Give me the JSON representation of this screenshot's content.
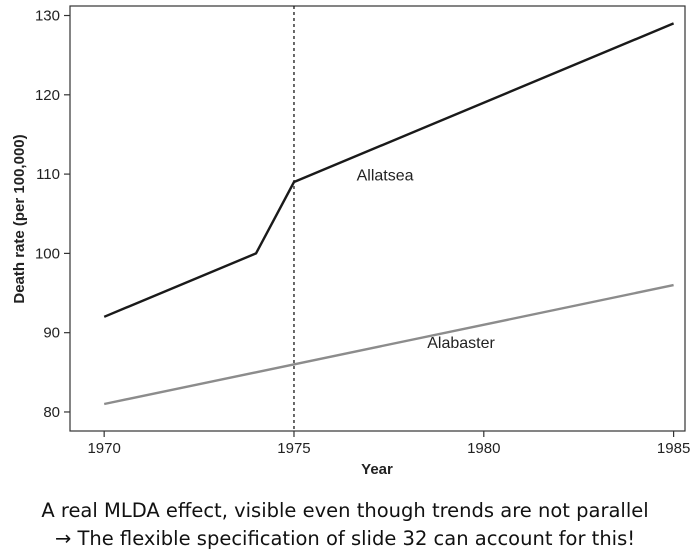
{
  "chart_data": {
    "type": "line",
    "xlabel": "Year",
    "ylabel": "Death rate (per 100,000)",
    "xlim": [
      1969.1,
      1985.3
    ],
    "ylim": [
      77.6,
      131.2
    ],
    "x_ticks": [
      1970,
      1975,
      1980,
      1985
    ],
    "y_ticks": [
      80,
      90,
      100,
      110,
      120,
      130
    ],
    "grid": false,
    "legend": "none",
    "series": [
      {
        "name": "Allatsea",
        "x": [
          1970,
          1974,
          1975,
          1985
        ],
        "values": [
          92,
          100,
          109,
          129
        ],
        "color": "#1a1a1a"
      },
      {
        "name": "Alabaster",
        "x": [
          1970,
          1985
        ],
        "values": [
          81,
          96
        ],
        "color": "#8c8c8c"
      }
    ],
    "annotations": [
      {
        "type": "vertical-dashed-line",
        "x": 1975
      }
    ],
    "series_labels": [
      {
        "text": "Allatsea",
        "x": 1977.4,
        "y": 109.8
      },
      {
        "text": "Alabaster",
        "x": 1979.4,
        "y": 88.7
      }
    ]
  },
  "caption": {
    "line1": "A real MLDA effect, visible even though trends are not parallel",
    "line2": "→ The flexible specification of slide 32 can account for this!"
  }
}
